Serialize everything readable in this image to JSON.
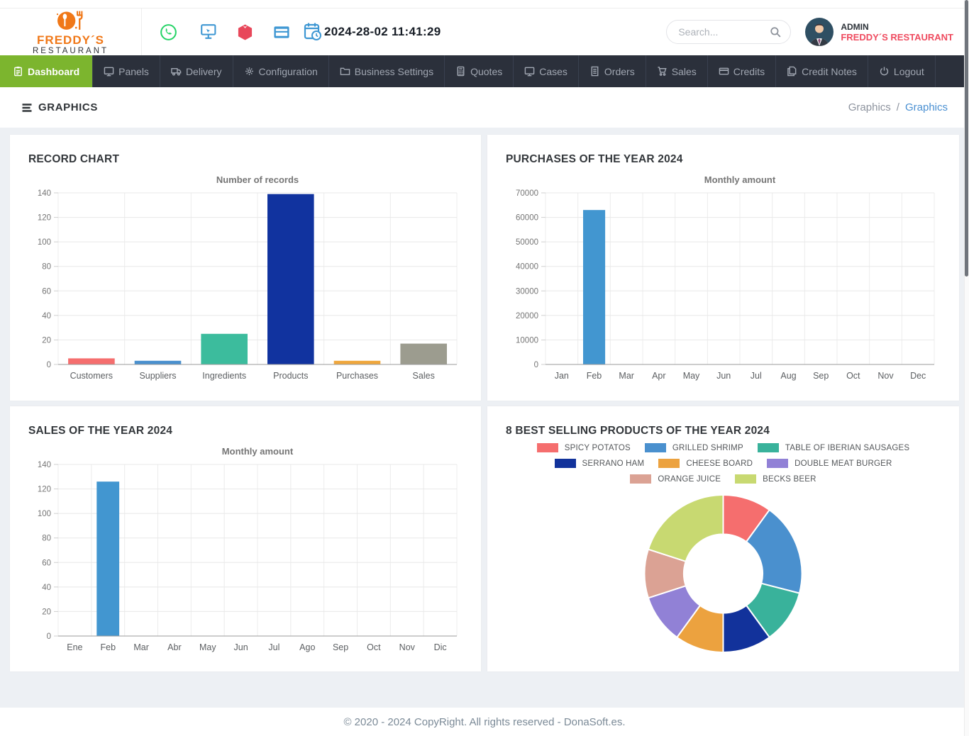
{
  "header": {
    "brand": {
      "name": "FREDDY´S",
      "subtitle": "RESTAURANT"
    },
    "quick_icons": [
      "whatsapp-icon",
      "screens-icon",
      "product-box-icon",
      "pos-card-icon",
      "calendar-clock-icon"
    ],
    "datetime": "2024-28-02 11:41:29",
    "search": {
      "placeholder": "Search..."
    },
    "user": {
      "role": "ADMIN",
      "name": "FREDDY´S RESTAURANT"
    }
  },
  "nav": {
    "items": [
      {
        "label": "Dashboard",
        "icon": "clipboard",
        "active": true
      },
      {
        "label": "Panels",
        "icon": "monitor",
        "active": false
      },
      {
        "label": "Delivery",
        "icon": "truck",
        "active": false
      },
      {
        "label": "Configuration",
        "icon": "gear",
        "active": false
      },
      {
        "label": "Business Settings",
        "icon": "folder",
        "active": false
      },
      {
        "label": "Quotes",
        "icon": "calculator",
        "active": false
      },
      {
        "label": "Cases",
        "icon": "monitor",
        "active": false
      },
      {
        "label": "Orders",
        "icon": "receipt",
        "active": false
      },
      {
        "label": "Sales",
        "icon": "cart",
        "active": false
      },
      {
        "label": "Credits",
        "icon": "card",
        "active": false
      },
      {
        "label": "Credit Notes",
        "icon": "docs",
        "active": false
      },
      {
        "label": "Logout",
        "icon": "power",
        "active": false
      }
    ]
  },
  "subheader": {
    "title": "GRAPHICS",
    "breadcrumb": {
      "parent": "Graphics",
      "separator": "/",
      "current": "Graphics"
    }
  },
  "chart_data": [
    {
      "type": "bar",
      "title": "RECORD CHART",
      "chart_title": "Number of records",
      "categories": [
        "Customers",
        "Suppliers",
        "Ingredients",
        "Products",
        "Purchases",
        "Sales"
      ],
      "values": [
        5,
        3,
        25,
        139,
        3,
        17
      ],
      "bar_colors": [
        "#f56e6e",
        "#4a90ce",
        "#3cbc9d",
        "#11339f",
        "#efa73d",
        "#9c9c8f"
      ],
      "ylim": [
        0,
        140
      ],
      "ytick_step": 20,
      "bar_ratio": 0.7,
      "grid": true,
      "legend_position": "none"
    },
    {
      "type": "bar",
      "title": "PURCHASES OF THE YEAR 2024",
      "chart_title": "Monthly amount",
      "categories": [
        "Jan",
        "Feb",
        "Mar",
        "Apr",
        "May",
        "Jun",
        "Jul",
        "Aug",
        "Sep",
        "Oct",
        "Nov",
        "Dec"
      ],
      "values": [
        0,
        63000,
        0,
        0,
        0,
        0,
        0,
        0,
        0,
        0,
        0,
        0
      ],
      "bar_color": "#4296d0",
      "ylim": [
        0,
        70000
      ],
      "ytick_step": 10000,
      "bar_ratio": 0.68,
      "grid": true,
      "legend_position": "none"
    },
    {
      "type": "bar",
      "title": "SALES OF THE YEAR 2024",
      "chart_title": "Monthly amount",
      "categories": [
        "Ene",
        "Feb",
        "Mar",
        "Abr",
        "May",
        "Jun",
        "Jul",
        "Ago",
        "Sep",
        "Oct",
        "Nov",
        "Dic"
      ],
      "values": [
        0,
        126,
        0,
        0,
        0,
        0,
        0,
        0,
        0,
        0,
        0,
        0
      ],
      "bar_color": "#4296d0",
      "ylim": [
        0,
        140
      ],
      "ytick_step": 20,
      "bar_ratio": 0.68,
      "grid": true,
      "legend_position": "none"
    },
    {
      "type": "donut",
      "title": "8 BEST SELLING PRODUCTS OF THE YEAR 2024",
      "legend_position": "top",
      "inner_radius_ratio": 0.5,
      "slices": [
        {
          "label": "SPICY POTATOS",
          "value": 10,
          "color": "#f56e6e"
        },
        {
          "label": "GRILLED SHRIMP",
          "value": 19,
          "color": "#4a90ce"
        },
        {
          "label": "TABLE OF IBERIAN SAUSAGES",
          "value": 11,
          "color": "#39b29b"
        },
        {
          "label": "SERRANO HAM",
          "value": 10,
          "color": "#12329b"
        },
        {
          "label": "CHEESE BOARD",
          "value": 10,
          "color": "#eca23f"
        },
        {
          "label": "DOUBLE MEAT BURGER",
          "value": 10,
          "color": "#9181d6"
        },
        {
          "label": "ORANGE JUICE",
          "value": 10,
          "color": "#dba294"
        },
        {
          "label": "BECKS BEER",
          "value": 20,
          "color": "#c8d971"
        }
      ]
    }
  ],
  "footer": {
    "text": "© 2020 - 2024 CopyRight. All rights reserved - DonaSoft.es."
  },
  "colors": {
    "accent_green": "#7cb52e",
    "nav_bg": "#2b303b",
    "nav_text": "#a0a6b1",
    "icon_blue": "#3e97d3",
    "link_blue": "#4a90d2",
    "brand_orange": "#f07818",
    "user_red": "#ef4b5f",
    "whatsapp_green": "#25d366",
    "box_red": "#e8475a",
    "page_bg": "#edf0f4",
    "gridline": "#e8e8e8",
    "axis_text": "#757575"
  }
}
